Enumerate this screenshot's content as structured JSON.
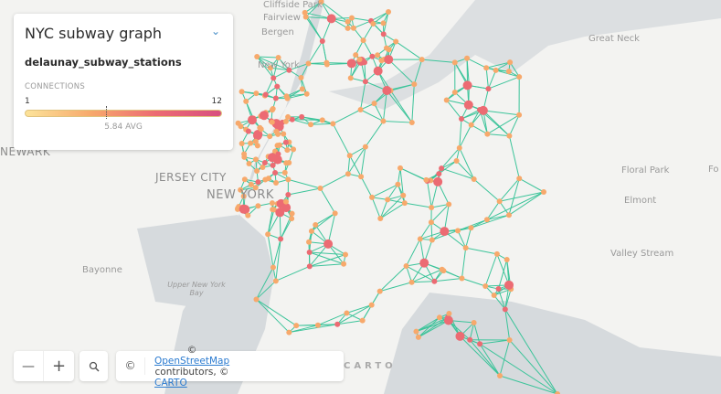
{
  "panel": {
    "title": "NYC subway graph",
    "layer": "delaunay_subway_stations",
    "legend_caption": "CONNECTIONS",
    "min": "1",
    "max": "12",
    "avg": "5.84 AVG",
    "avg_value": 5.84,
    "gradient": [
      "#fce39a",
      "#f7a96c",
      "#ec6b73",
      "#d84f7f"
    ]
  },
  "controls": {
    "zoom_out": "—",
    "zoom_in": "+",
    "search_icon": "search-icon",
    "info": "©"
  },
  "attribution": {
    "prefix": "©",
    "osm": "OpenStreetMap",
    "middle": " contributors, ©",
    "carto": "CARTO"
  },
  "watermark": "CARTO",
  "map_labels": [
    "Cliffside Park",
    "Fairview",
    "Bergen",
    "New York",
    "Great Neck",
    "NEWARK",
    "JERSEY CITY",
    "NEW YORK",
    "Floral Park",
    "Elmont",
    "Bayonne",
    "Upper New York Bay",
    "Valley Stream",
    "Fo"
  ],
  "colors": {
    "edge": "#3cc49a",
    "water": "#d5d9dc",
    "land": "#f3f3f1"
  }
}
